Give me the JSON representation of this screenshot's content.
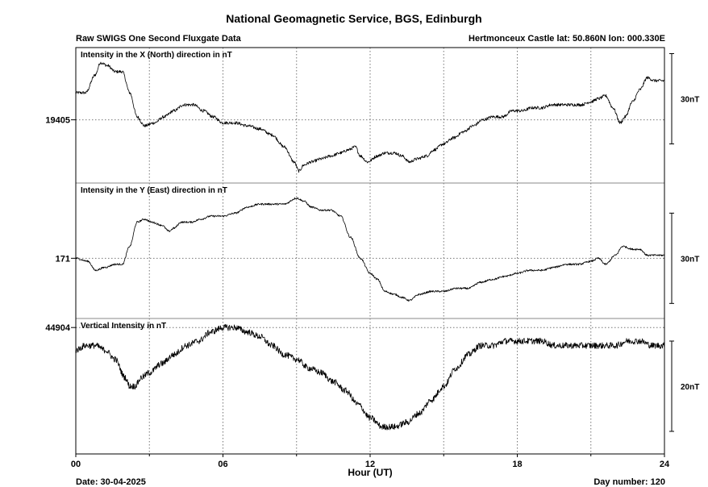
{
  "header": {
    "title": "National Geomagnetic Service, BGS, Edinburgh",
    "left": "Raw SWIGS One Second Fluxgate Data",
    "right": "Hertmonceux Castle  lat: 50.860N lon: 000.330E"
  },
  "footer": {
    "date": "Date: 30-04-2025",
    "day": "Day number:  120"
  },
  "chart_data": {
    "type": "line",
    "xlabel": "Hour (UT)",
    "xlim": [
      0,
      24
    ],
    "xticks": [
      {
        "value": 0,
        "label": "00"
      },
      {
        "value": 6,
        "label": "06"
      },
      {
        "value": 12,
        "label": "12"
      },
      {
        "value": 18,
        "label": "18"
      },
      {
        "value": 24,
        "label": "24"
      }
    ],
    "panels": [
      {
        "id": "x",
        "label": "Intensity in the X (North) direction in nT",
        "ref_value": 19405,
        "ref_label": "19405",
        "ylim": [
          19384,
          19429
        ],
        "scale_bar": {
          "value": 30,
          "label": "30nT",
          "from": 19397,
          "to": 19427
        },
        "noise": 0.5,
        "points": [
          [
            0,
            19414
          ],
          [
            0.4,
            19414
          ],
          [
            0.8,
            19420
          ],
          [
            1.0,
            19424
          ],
          [
            1.3,
            19423
          ],
          [
            1.6,
            19421
          ],
          [
            1.9,
            19421
          ],
          [
            2.2,
            19414
          ],
          [
            2.5,
            19406
          ],
          [
            2.8,
            19403
          ],
          [
            3.2,
            19404
          ],
          [
            3.6,
            19406
          ],
          [
            4.0,
            19408
          ],
          [
            4.4,
            19410
          ],
          [
            4.8,
            19410
          ],
          [
            5.2,
            19408
          ],
          [
            5.6,
            19406
          ],
          [
            6.0,
            19404
          ],
          [
            6.5,
            19404
          ],
          [
            7.0,
            19403
          ],
          [
            7.5,
            19402
          ],
          [
            8.0,
            19400
          ],
          [
            8.5,
            19396
          ],
          [
            8.9,
            19391
          ],
          [
            9.1,
            19388
          ],
          [
            9.3,
            19390
          ],
          [
            9.6,
            19391
          ],
          [
            10.0,
            19392
          ],
          [
            10.4,
            19393
          ],
          [
            10.8,
            19394
          ],
          [
            11.1,
            19395
          ],
          [
            11.4,
            19396
          ],
          [
            11.6,
            19393
          ],
          [
            11.9,
            19391
          ],
          [
            12.3,
            19393
          ],
          [
            12.6,
            19394
          ],
          [
            13.0,
            19394
          ],
          [
            13.3,
            19393
          ],
          [
            13.6,
            19391
          ],
          [
            13.9,
            19392
          ],
          [
            14.3,
            19393
          ],
          [
            14.6,
            19395
          ],
          [
            15.0,
            19397
          ],
          [
            15.4,
            19399
          ],
          [
            15.8,
            19401
          ],
          [
            16.2,
            19403
          ],
          [
            16.6,
            19405
          ],
          [
            17.0,
            19406
          ],
          [
            17.4,
            19406
          ],
          [
            17.8,
            19408
          ],
          [
            18.2,
            19408
          ],
          [
            18.6,
            19409
          ],
          [
            19.0,
            19409
          ],
          [
            19.4,
            19410
          ],
          [
            19.8,
            19410
          ],
          [
            20.2,
            19410
          ],
          [
            20.6,
            19410
          ],
          [
            21.0,
            19411
          ],
          [
            21.3,
            19412
          ],
          [
            21.6,
            19413
          ],
          [
            21.9,
            19409
          ],
          [
            22.2,
            19404
          ],
          [
            22.4,
            19406
          ],
          [
            22.7,
            19411
          ],
          [
            23.0,
            19415
          ],
          [
            23.3,
            19419
          ],
          [
            23.6,
            19418
          ],
          [
            24.0,
            19418
          ]
        ]
      },
      {
        "id": "y",
        "label": "Intensity in the Y (East) direction in nT",
        "ref_value": 171,
        "ref_label": "171",
        "ylim": [
          151,
          196
        ],
        "scale_bar": {
          "value": 30,
          "label": "30nT",
          "from": 156,
          "to": 186
        },
        "noise": 0.3,
        "points": [
          [
            0,
            171
          ],
          [
            0.5,
            170
          ],
          [
            0.8,
            167
          ],
          [
            1.2,
            168
          ],
          [
            1.6,
            169
          ],
          [
            1.9,
            169
          ],
          [
            2.2,
            175
          ],
          [
            2.5,
            183
          ],
          [
            2.8,
            184
          ],
          [
            3.1,
            183
          ],
          [
            3.5,
            182
          ],
          [
            3.8,
            180
          ],
          [
            4.0,
            181
          ],
          [
            4.3,
            183
          ],
          [
            4.7,
            183
          ],
          [
            5.1,
            184
          ],
          [
            5.5,
            185
          ],
          [
            6.0,
            185
          ],
          [
            6.5,
            186
          ],
          [
            7.0,
            188
          ],
          [
            7.5,
            189
          ],
          [
            8.0,
            189
          ],
          [
            8.5,
            189
          ],
          [
            9.0,
            191
          ],
          [
            9.3,
            190
          ],
          [
            9.6,
            188
          ],
          [
            10.0,
            187
          ],
          [
            10.4,
            187
          ],
          [
            10.8,
            185
          ],
          [
            11.2,
            178
          ],
          [
            11.6,
            171
          ],
          [
            12.0,
            166
          ],
          [
            12.3,
            164
          ],
          [
            12.6,
            160
          ],
          [
            13.0,
            159
          ],
          [
            13.3,
            158
          ],
          [
            13.6,
            157
          ],
          [
            14.0,
            159
          ],
          [
            14.5,
            160
          ],
          [
            15.0,
            160
          ],
          [
            15.5,
            161
          ],
          [
            16.0,
            161
          ],
          [
            16.5,
            163
          ],
          [
            17.0,
            164
          ],
          [
            17.5,
            165
          ],
          [
            18.0,
            166
          ],
          [
            18.5,
            167
          ],
          [
            19.0,
            167
          ],
          [
            19.5,
            168
          ],
          [
            20.0,
            169
          ],
          [
            20.5,
            169
          ],
          [
            21.0,
            170
          ],
          [
            21.3,
            171
          ],
          [
            21.6,
            169
          ],
          [
            22.0,
            172
          ],
          [
            22.3,
            175
          ],
          [
            22.7,
            174
          ],
          [
            23.0,
            174
          ],
          [
            23.3,
            172
          ],
          [
            23.7,
            172
          ],
          [
            24.0,
            172
          ]
        ]
      },
      {
        "id": "z",
        "label": "Vertical Intensity in nT",
        "ref_value": 44904,
        "ref_label": "44904",
        "ylim": [
          44876,
          44906
        ],
        "scale_bar": {
          "value": 20,
          "label": "20nT",
          "from": 44881,
          "to": 44901
        },
        "noise": 0.7,
        "points": [
          [
            0,
            44899
          ],
          [
            0.4,
            44900
          ],
          [
            0.8,
            44900
          ],
          [
            1.2,
            44899
          ],
          [
            1.6,
            44897
          ],
          [
            2.0,
            44893
          ],
          [
            2.2,
            44891
          ],
          [
            2.4,
            44891
          ],
          [
            2.7,
            44893
          ],
          [
            3.0,
            44894
          ],
          [
            3.5,
            44896
          ],
          [
            4.0,
            44898
          ],
          [
            4.5,
            44900
          ],
          [
            5.0,
            44901
          ],
          [
            5.5,
            44903
          ],
          [
            6.0,
            44904
          ],
          [
            6.5,
            44904
          ],
          [
            7.0,
            44903
          ],
          [
            7.5,
            44902
          ],
          [
            8.0,
            44900
          ],
          [
            8.5,
            44898
          ],
          [
            9.0,
            44897
          ],
          [
            9.5,
            44895
          ],
          [
            10.0,
            44894
          ],
          [
            10.5,
            44892
          ],
          [
            11.0,
            44890
          ],
          [
            11.5,
            44887
          ],
          [
            12.0,
            44884
          ],
          [
            12.5,
            44882
          ],
          [
            13.0,
            44882
          ],
          [
            13.5,
            44883
          ],
          [
            14.0,
            44885
          ],
          [
            14.5,
            44888
          ],
          [
            15.0,
            44891
          ],
          [
            15.5,
            44895
          ],
          [
            16.0,
            44898
          ],
          [
            16.5,
            44900
          ],
          [
            17.0,
            44900
          ],
          [
            17.5,
            44901
          ],
          [
            18.0,
            44901
          ],
          [
            18.5,
            44901
          ],
          [
            19.0,
            44901
          ],
          [
            19.5,
            44900
          ],
          [
            20.0,
            44900
          ],
          [
            20.5,
            44900
          ],
          [
            21.0,
            44900
          ],
          [
            21.5,
            44900
          ],
          [
            22.0,
            44900
          ],
          [
            22.5,
            44901
          ],
          [
            23.0,
            44901
          ],
          [
            23.5,
            44900
          ],
          [
            24.0,
            44900
          ]
        ]
      }
    ]
  }
}
